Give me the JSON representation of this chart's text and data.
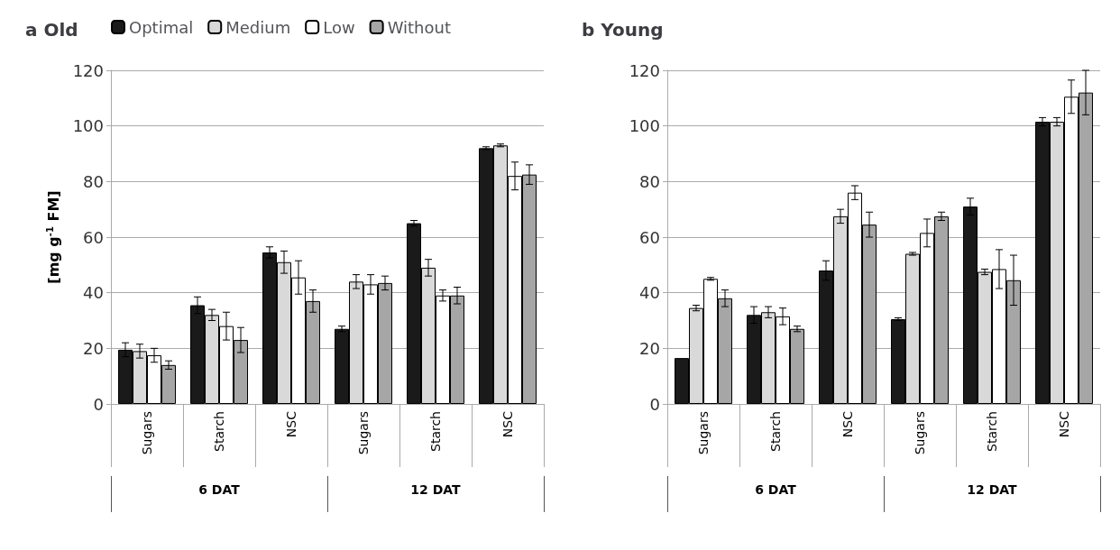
{
  "chart_data": [
    {
      "type": "bar",
      "title": "a Old",
      "ylabel": "[mg g$^{-1}$ FM]",
      "categories": [
        "Sugars",
        "Starch",
        "NSC",
        "Sugars",
        "Starch",
        "NSC"
      ],
      "annotations": [
        "6 DAT",
        "12 DAT"
      ],
      "ylim": [
        0,
        120
      ],
      "yticks": [
        0,
        20,
        40,
        60,
        80,
        100,
        120
      ],
      "grid": "y",
      "legend": "top",
      "series": [
        {
          "name": "Optimal",
          "color": "#1a1a1a",
          "values": [
            19.5,
            35.5,
            54.5,
            27,
            65,
            92
          ],
          "errors": [
            2.5,
            3,
            2,
            1,
            1,
            0.5
          ]
        },
        {
          "name": "Medium",
          "color": "#d9d9d9",
          "values": [
            19,
            32,
            51,
            44,
            49,
            93
          ],
          "errors": [
            2.5,
            2,
            4,
            2.5,
            3,
            0.5
          ]
        },
        {
          "name": "Low",
          "color": "#ffffff",
          "values": [
            17.5,
            28,
            45.5,
            43,
            39,
            82
          ],
          "errors": [
            2.5,
            5,
            6,
            3.5,
            2,
            5
          ]
        },
        {
          "name": "Without",
          "color": "#a6a6a6",
          "values": [
            14,
            23,
            37,
            43.5,
            39,
            82.5
          ],
          "errors": [
            1.5,
            4.5,
            4,
            2.5,
            3,
            3.5
          ]
        }
      ]
    },
    {
      "type": "bar",
      "title": "b Young",
      "categories": [
        "Sugars",
        "Starch",
        "NSC",
        "Sugars",
        "Starch",
        "NSC"
      ],
      "annotations": [
        "6 DAT",
        "12 DAT"
      ],
      "ylim": [
        0,
        120
      ],
      "yticks": [
        0,
        20,
        40,
        60,
        80,
        100,
        120
      ],
      "grid": "y",
      "series": [
        {
          "color": "#1a1a1a",
          "values": [
            16.5,
            32,
            48,
            30.5,
            71,
            101.5
          ],
          "errors": [
            null,
            3,
            3.5,
            0.5,
            3,
            1.5
          ]
        },
        {
          "color": "#d9d9d9",
          "values": [
            34.5,
            33,
            67.5,
            54,
            47.5,
            101.5
          ],
          "errors": [
            1,
            2,
            2.5,
            0.5,
            1,
            1.5
          ]
        },
        {
          "color": "#ffffff",
          "values": [
            45,
            31.5,
            76,
            61.5,
            48.5,
            110.5
          ],
          "errors": [
            0.5,
            3,
            2.5,
            5,
            7,
            6
          ]
        },
        {
          "color": "#a6a6a6",
          "values": [
            38,
            27,
            64.5,
            67.5,
            44.5,
            112
          ],
          "errors": [
            3,
            1,
            4.5,
            1.5,
            9,
            8
          ]
        }
      ]
    }
  ]
}
